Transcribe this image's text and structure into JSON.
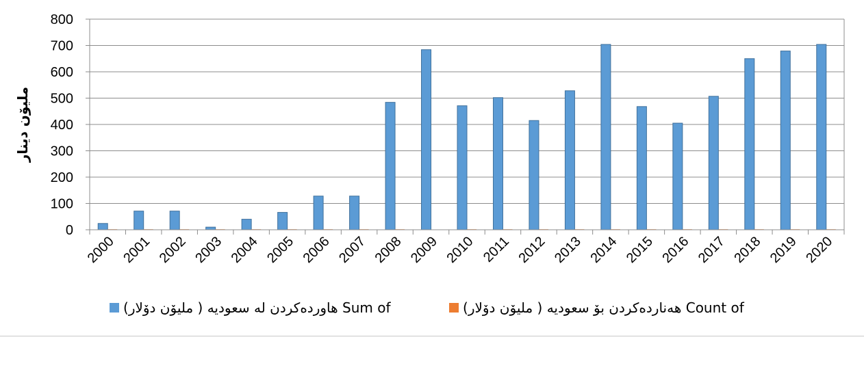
{
  "chart_data": {
    "type": "bar",
    "categories": [
      "2000",
      "2001",
      "2002",
      "2003",
      "2004",
      "2005",
      "2006",
      "2007",
      "2008",
      "2009",
      "2010",
      "2011",
      "2012",
      "2013",
      "2014",
      "2015",
      "2016",
      "2017",
      "2018",
      "2019",
      "2020"
    ],
    "series": [
      {
        "name": "(هاوردەکردن لە سعودیە ( ملیۆن دۆلار Sum of",
        "color": "#5B9BD5",
        "values": [
          24,
          71,
          71,
          10,
          40,
          66,
          128,
          128,
          484,
          684,
          471,
          502,
          415,
          528,
          704,
          468,
          405,
          507,
          650,
          679,
          704
        ]
      },
      {
        "name": "(هەناردەکردن بۆ سعودیە ( ملیۆن دۆلار Count of",
        "color": "#ED7D31",
        "values": [
          2,
          2,
          2,
          2,
          2,
          2,
          2,
          2,
          2,
          0,
          2,
          2,
          2,
          2,
          2,
          2,
          2,
          2,
          2,
          2,
          2
        ]
      }
    ],
    "ylabel": "ملیۆن دینار",
    "xlabel": "",
    "ylim": [
      0,
      800
    ],
    "yticks": [
      0,
      100,
      200,
      300,
      400,
      500,
      600,
      700,
      800
    ],
    "grid": true,
    "legend_position": "bottom"
  }
}
